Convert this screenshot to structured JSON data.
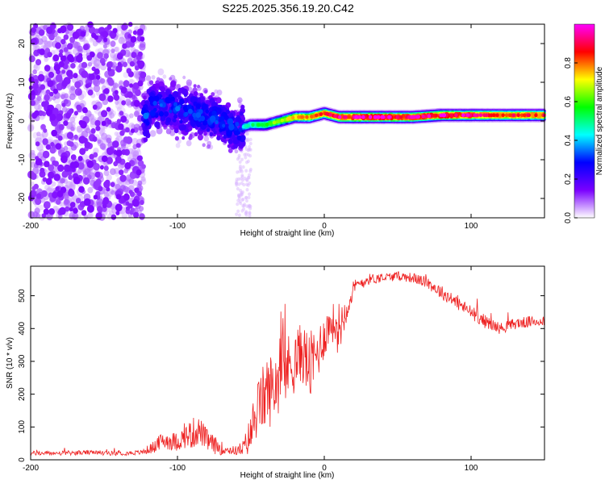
{
  "chart_data": [
    {
      "type": "heatmap",
      "title": "S225.2025.356.19.20.C42",
      "xlabel": "Height of straight line (km)",
      "ylabel": "Frequency (Hz)",
      "xlim": [
        -200,
        150
      ],
      "ylim": [
        -25,
        25
      ],
      "xticks": [
        -200,
        -100,
        0,
        100
      ],
      "xtick_labels": [
        "-200",
        "-100",
        "0",
        "100"
      ],
      "yticks": [
        -20,
        -10,
        0,
        10,
        20
      ],
      "ytick_labels": [
        "-20",
        "-10",
        "0",
        "10",
        "20"
      ],
      "colorbar": {
        "label": "Normalized spectral amplitude",
        "range": [
          0,
          1
        ],
        "ticks": [
          0.0,
          0.2,
          0.4,
          0.6,
          0.8
        ],
        "tick_labels": [
          "0.0",
          "0.2",
          "0.4",
          "0.6",
          "0.8"
        ],
        "colormap": [
          "#ffffff",
          "#7a00ff",
          "#0000ff",
          "#00ffff",
          "#00ff00",
          "#ffff00",
          "#ff0000",
          "#ff00ff"
        ]
      },
      "regions": [
        {
          "x_range": [
            -200,
            -123
          ],
          "freq_range": [
            -25,
            25
          ],
          "amplitude": 0.08,
          "description": "broadband noise"
        },
        {
          "x_range": [
            -123,
            -55
          ],
          "freq_range": [
            -7,
            11
          ],
          "amplitude_peak": 0.3,
          "description": "scattered signal energy"
        },
        {
          "x_range": [
            -55,
            150
          ],
          "center_freq": 1,
          "amplitude_peak": 0.95,
          "description": "coherent tone near 0-2 Hz"
        }
      ],
      "ridge": {
        "x": [
          -120,
          -110,
          -100,
          -90,
          -80,
          -70,
          -60,
          -50,
          -40,
          -30,
          -20,
          -10,
          0,
          10,
          20,
          40,
          60,
          80,
          100,
          120,
          150
        ],
        "freq": [
          3,
          4,
          3,
          2,
          1,
          0,
          -2,
          -1,
          -1,
          0,
          1,
          1,
          2,
          1,
          1,
          1,
          1,
          1.5,
          1.5,
          1.5,
          1.5
        ],
        "amplitude": [
          0.2,
          0.25,
          0.3,
          0.3,
          0.3,
          0.3,
          0.35,
          0.45,
          0.55,
          0.6,
          0.7,
          0.75,
          0.8,
          0.85,
          0.9,
          0.9,
          0.85,
          0.9,
          0.85,
          0.8,
          0.8
        ]
      }
    },
    {
      "type": "line",
      "xlabel": "Height of straight line (km)",
      "ylabel": "SNR (10 * v/v)",
      "xlim": [
        -200,
        150
      ],
      "ylim": [
        0,
        590
      ],
      "xticks": [
        -200,
        -100,
        0,
        100
      ],
      "xtick_labels": [
        "-200",
        "-100",
        "0",
        "100"
      ],
      "yticks": [
        0,
        100,
        200,
        300,
        400,
        500
      ],
      "ytick_labels": [
        "0",
        "100",
        "200",
        "300",
        "400",
        "500"
      ],
      "series": [
        {
          "name": "SNR",
          "color": "#ee2222",
          "x": [
            -200,
            -180,
            -160,
            -140,
            -125,
            -115,
            -110,
            -100,
            -95,
            -90,
            -85,
            -80,
            -75,
            -70,
            -65,
            -60,
            -55,
            -50,
            -45,
            -40,
            -35,
            -30,
            -25,
            -20,
            -15,
            -10,
            -5,
            0,
            5,
            10,
            15,
            20,
            25,
            30,
            40,
            50,
            60,
            70,
            80,
            90,
            100,
            110,
            120,
            130,
            140,
            150
          ],
          "y": [
            20,
            20,
            22,
            20,
            22,
            40,
            60,
            55,
            70,
            80,
            90,
            60,
            45,
            35,
            30,
            28,
            35,
            80,
            160,
            200,
            220,
            260,
            280,
            300,
            330,
            280,
            320,
            380,
            420,
            400,
            460,
            520,
            540,
            550,
            555,
            560,
            555,
            540,
            510,
            480,
            450,
            420,
            400,
            415,
            420,
            425
          ],
          "jitter": [
            10,
            10,
            10,
            10,
            10,
            30,
            40,
            40,
            50,
            70,
            60,
            50,
            40,
            30,
            20,
            20,
            40,
            90,
            120,
            160,
            160,
            160,
            150,
            140,
            130,
            160,
            120,
            100,
            80,
            120,
            60,
            40,
            30,
            25,
            20,
            20,
            22,
            25,
            30,
            30,
            30,
            30,
            25,
            25,
            25,
            25
          ]
        }
      ]
    }
  ]
}
